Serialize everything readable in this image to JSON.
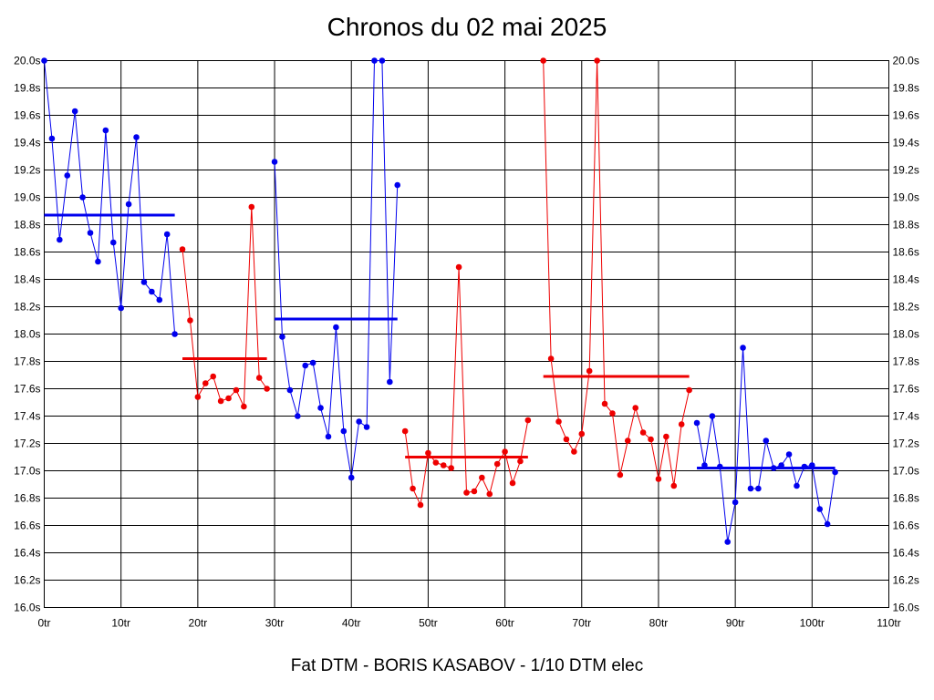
{
  "chart_data": {
    "type": "line",
    "title": "Chronos du 02 mai 2025",
    "footer": "Fat DTM - BORIS KASABOV - 1/10 DTM elec",
    "xlabel": "",
    "ylabel": "",
    "xlim": [
      0,
      110
    ],
    "ylim": [
      16.0,
      20.0
    ],
    "x_ticks": [
      0,
      10,
      20,
      30,
      40,
      50,
      60,
      70,
      80,
      90,
      100,
      110
    ],
    "x_tick_labels": [
      "0tr",
      "10tr",
      "20tr",
      "30tr",
      "40tr",
      "50tr",
      "60tr",
      "70tr",
      "80tr",
      "90tr",
      "100tr",
      "110tr"
    ],
    "y_ticks": [
      16.0,
      16.2,
      16.4,
      16.6,
      16.8,
      17.0,
      17.2,
      17.4,
      17.6,
      17.8,
      18.0,
      18.2,
      18.4,
      18.6,
      18.8,
      19.0,
      19.2,
      19.4,
      19.6,
      19.8,
      20.0
    ],
    "y_tick_labels": [
      "16.0s",
      "16.2s",
      "16.4s",
      "16.6s",
      "16.8s",
      "17.0s",
      "17.2s",
      "17.4s",
      "17.6s",
      "17.8s",
      "18.0s",
      "18.2s",
      "18.4s",
      "18.6s",
      "18.8s",
      "19.0s",
      "19.2s",
      "19.4s",
      "19.6s",
      "19.8s",
      "20.0s"
    ],
    "grid": true,
    "series": [
      {
        "color": "#0000ee",
        "avg": 18.87,
        "x_start": 0,
        "values": [
          20.0,
          19.43,
          18.69,
          19.16,
          19.63,
          19.0,
          18.74,
          18.53,
          19.49,
          18.67,
          18.19,
          18.95,
          19.44,
          18.38,
          18.31,
          18.25,
          18.73,
          18.0
        ]
      },
      {
        "color": "#ee0000",
        "avg": 17.82,
        "x_start": 18,
        "values": [
          18.62,
          18.1,
          17.54,
          17.64,
          17.69,
          17.51,
          17.53,
          17.59,
          17.47,
          18.93,
          17.68,
          17.6
        ]
      },
      {
        "color": "#0000ee",
        "avg": 18.11,
        "x_start": 30,
        "values": [
          19.26,
          17.98,
          17.59,
          17.4,
          17.77,
          17.79,
          17.46,
          17.25,
          18.05,
          17.29,
          16.95,
          17.36,
          17.32,
          20.0,
          20.0,
          17.65,
          19.09
        ]
      },
      {
        "color": "#ee0000",
        "avg": 17.1,
        "x_start": 47,
        "values": [
          17.29,
          16.87,
          16.75,
          17.13,
          17.06,
          17.04,
          17.02,
          18.49,
          16.84,
          16.85,
          16.95,
          16.83,
          17.05,
          17.14,
          16.91,
          17.07,
          17.37
        ]
      },
      {
        "color": "#ee0000",
        "avg": 17.69,
        "x_start": 65,
        "values": [
          20.0,
          17.82,
          17.36,
          17.23,
          17.14,
          17.27,
          17.73,
          20.0,
          17.49,
          17.42,
          16.97,
          17.22,
          17.46,
          17.28,
          17.23,
          16.94,
          17.25,
          16.89,
          17.34,
          17.59
        ]
      },
      {
        "color": "#0000ee",
        "avg": 17.02,
        "x_start": 85,
        "values": [
          17.35,
          17.04,
          17.4,
          17.03,
          16.48,
          16.77,
          17.9,
          16.87,
          16.87,
          17.22,
          17.02,
          17.04,
          17.12,
          16.89,
          17.03,
          17.04,
          16.72,
          16.61,
          16.99
        ]
      }
    ]
  }
}
